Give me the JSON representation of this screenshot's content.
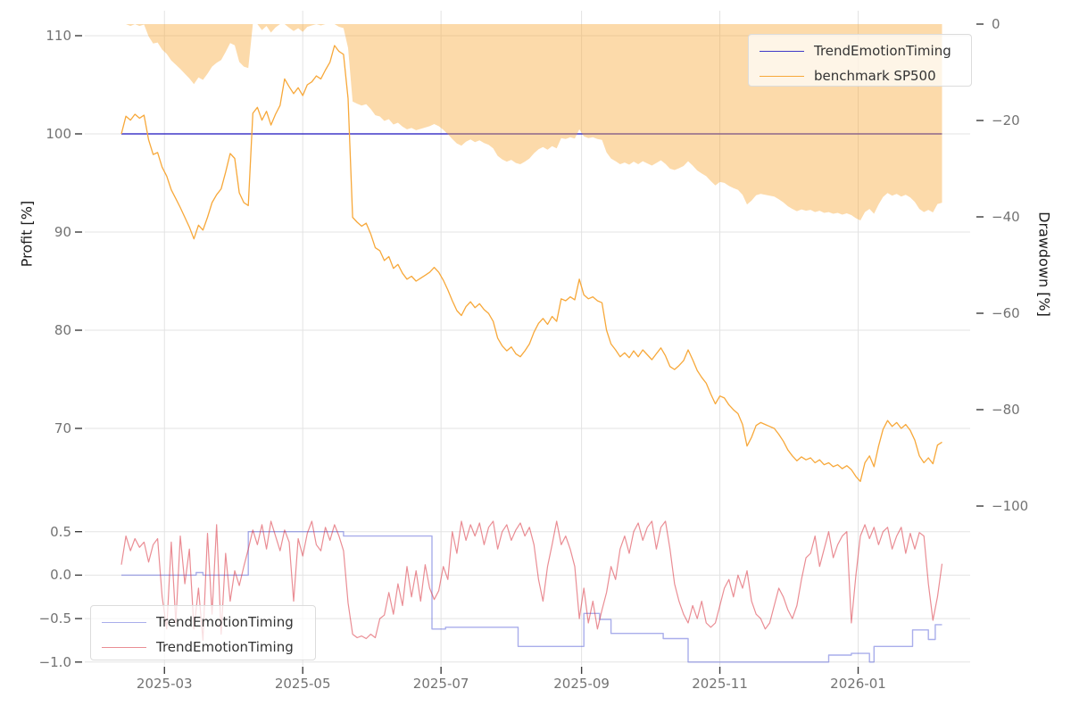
{
  "figure": {
    "type": "backtest-report-chart",
    "title": ""
  },
  "chart_data": {
    "type": "line",
    "x_axis": {
      "unit": "date",
      "start_date": "2025-02-10",
      "day_step": 2,
      "data_day_range": [
        0,
        362
      ],
      "ticks": [
        {
          "label": "2025-03",
          "day": 19
        },
        {
          "label": "2025-05",
          "day": 80
        },
        {
          "label": "2025-07",
          "day": 141
        },
        {
          "label": "2025-09",
          "day": 203
        },
        {
          "label": "2025-11",
          "day": 264
        },
        {
          "label": "2026-01",
          "day": 325
        }
      ]
    },
    "panels": [
      {
        "name": "profit-drawdown",
        "ylabel": "Profit [%]",
        "ylabel_right": "Drawdown [%]",
        "ylim_left": [
          61,
          112.5
        ],
        "yticks_left": {
          "values": [
            110,
            100,
            90,
            80,
            70
          ],
          "labels": [
            "110",
            "100",
            "90",
            "80",
            "70"
          ]
        },
        "ylim_right": [
          -102,
          3
        ],
        "yticks_right": {
          "values": [
            0,
            -20,
            -40,
            -60,
            -80,
            -100
          ],
          "labels": [
            "0",
            "−20",
            "−40",
            "−60",
            "−80",
            "−100"
          ]
        },
        "grid": true,
        "legend_position": "upper right",
        "series": [
          {
            "name": "TrendEmotionTiming",
            "type": "line",
            "axis": "left",
            "color": "#4038c8",
            "segments": [
              [
                0,
                362,
                100.0
              ]
            ]
          },
          {
            "name": "benchmark SP500",
            "type": "line",
            "axis": "left",
            "color": "#f7a83a",
            "values": [
              100.0,
              101.8,
              101.4,
              102.0,
              101.6,
              101.9,
              99.4,
              97.9,
              98.1,
              96.6,
              95.7,
              94.3,
              93.4,
              92.5,
              91.5,
              90.5,
              89.3,
              90.7,
              90.2,
              91.5,
              93.0,
              93.8,
              94.4,
              96.1,
              98.0,
              97.5,
              94.0,
              93.0,
              92.7,
              102.1,
              102.7,
              101.4,
              102.3,
              100.9,
              102.0,
              102.9,
              105.6,
              104.8,
              104.1,
              104.7,
              103.9,
              105.0,
              105.3,
              105.9,
              105.6,
              106.5,
              107.3,
              109.0,
              108.4,
              108.1,
              103.6,
              91.5,
              91.0,
              90.6,
              90.9,
              89.8,
              88.4,
              88.1,
              87.1,
              87.5,
              86.3,
              86.7,
              85.8,
              85.2,
              85.5,
              85.0,
              85.3,
              85.6,
              85.9,
              86.4,
              85.9,
              85.1,
              84.1,
              83.0,
              82.0,
              81.5,
              82.4,
              82.9,
              82.3,
              82.7,
              82.1,
              81.7,
              80.9,
              79.2,
              78.4,
              77.9,
              78.3,
              77.6,
              77.3,
              77.9,
              78.6,
              79.8,
              80.7,
              81.2,
              80.6,
              81.4,
              80.9,
              83.2,
              83.0,
              83.4,
              83.1,
              85.2,
              83.6,
              83.2,
              83.4,
              83.0,
              82.8,
              80.0,
              78.6,
              78.0,
              77.3,
              77.7,
              77.2,
              77.9,
              77.3,
              78.0,
              77.5,
              77.0,
              77.6,
              78.2,
              77.4,
              76.3,
              76.0,
              76.4,
              76.9,
              78.0,
              77.0,
              75.9,
              75.2,
              74.6,
              73.5,
              72.5,
              73.3,
              73.1,
              72.4,
              71.9,
              71.5,
              70.4,
              68.2,
              69.1,
              70.3,
              70.6,
              70.4,
              70.2,
              70.0,
              69.4,
              68.7,
              67.8,
              67.2,
              66.7,
              67.1,
              66.8,
              67.0,
              66.5,
              66.8,
              66.3,
              66.5,
              66.1,
              66.3,
              65.9,
              66.2,
              65.8,
              65.1,
              64.6,
              66.5,
              67.2,
              66.1,
              68.2,
              69.9,
              70.8,
              70.2,
              70.6,
              70.0,
              70.4,
              69.8,
              68.8,
              67.2,
              66.5,
              67.0,
              66.4,
              68.3,
              68.6
            ]
          },
          {
            "name": "benchmark SP500 drawdown",
            "type": "area",
            "axis": "right",
            "fill": "rgba(248,166,52,0.42)",
            "derived_from": "benchmark SP500",
            "formula": "(value / running_max - 1) * 100"
          }
        ]
      },
      {
        "name": "position-signal",
        "ylim": [
          -1.04,
          0.66
        ],
        "yticks": {
          "values": [
            0.5,
            0.0,
            -0.5,
            -1.0
          ],
          "labels": [
            "0.5",
            "0.0",
            "−0.5",
            "−1.0"
          ]
        },
        "grid": true,
        "legend_position": "lower left",
        "series": [
          {
            "name": "TrendEmotionTiming",
            "type": "step",
            "color": "rgba(84,94,216,0.5)",
            "segments": [
              [
                0,
                33,
                0.0
              ],
              [
                33,
                36,
                0.03
              ],
              [
                36,
                56,
                0.0
              ],
              [
                56,
                98,
                0.5
              ],
              [
                98,
                137,
                0.45
              ],
              [
                137,
                143,
                -0.62
              ],
              [
                143,
                175,
                -0.6
              ],
              [
                175,
                204,
                -0.82
              ],
              [
                204,
                211,
                -0.44
              ],
              [
                211,
                216,
                -0.51
              ],
              [
                216,
                239,
                -0.67
              ],
              [
                239,
                250,
                -0.73
              ],
              [
                250,
                312,
                -1.0
              ],
              [
                312,
                322,
                -0.92
              ],
              [
                322,
                330,
                -0.9
              ],
              [
                330,
                332,
                -1.0
              ],
              [
                332,
                349,
                -0.82
              ],
              [
                349,
                356,
                -0.63
              ],
              [
                356,
                359,
                -0.74
              ],
              [
                359,
                362,
                -0.57
              ]
            ]
          },
          {
            "name": "TrendEmotionTiming",
            "type": "line",
            "color": "rgba(217,48,60,0.55)",
            "values": [
              0.12,
              0.45,
              0.28,
              0.42,
              0.32,
              0.38,
              0.15,
              0.35,
              0.42,
              -0.25,
              -0.62,
              0.38,
              -0.55,
              0.45,
              -0.1,
              0.3,
              -0.62,
              -0.15,
              -0.75,
              0.48,
              -0.45,
              0.58,
              -0.68,
              0.25,
              -0.3,
              0.05,
              -0.12,
              0.1,
              0.3,
              0.52,
              0.35,
              0.58,
              0.3,
              0.62,
              0.45,
              0.28,
              0.52,
              0.38,
              -0.3,
              0.42,
              0.22,
              0.48,
              0.62,
              0.35,
              0.28,
              0.55,
              0.4,
              0.58,
              0.45,
              0.28,
              -0.32,
              -0.68,
              -0.72,
              -0.7,
              -0.73,
              -0.68,
              -0.72,
              -0.5,
              -0.46,
              -0.2,
              -0.45,
              -0.1,
              -0.35,
              0.1,
              -0.25,
              0.05,
              -0.3,
              0.12,
              -0.15,
              -0.28,
              -0.18,
              0.1,
              -0.05,
              0.5,
              0.25,
              0.62,
              0.4,
              0.58,
              0.45,
              0.6,
              0.35,
              0.55,
              0.62,
              0.3,
              0.5,
              0.58,
              0.4,
              0.52,
              0.6,
              0.45,
              0.55,
              0.35,
              -0.05,
              -0.3,
              0.1,
              0.35,
              0.62,
              0.35,
              0.45,
              0.3,
              0.1,
              -0.5,
              -0.15,
              -0.55,
              -0.3,
              -0.62,
              -0.4,
              -0.2,
              0.1,
              -0.05,
              0.3,
              0.45,
              0.25,
              0.5,
              0.6,
              0.4,
              0.55,
              0.62,
              0.3,
              0.55,
              0.62,
              0.3,
              -0.1,
              -0.3,
              -0.45,
              -0.55,
              -0.35,
              -0.5,
              -0.3,
              -0.55,
              -0.6,
              -0.55,
              -0.35,
              -0.15,
              -0.05,
              -0.25,
              0.0,
              -0.15,
              0.05,
              -0.3,
              -0.45,
              -0.5,
              -0.62,
              -0.55,
              -0.35,
              -0.15,
              -0.25,
              -0.4,
              -0.5,
              -0.35,
              -0.05,
              0.2,
              0.25,
              0.45,
              0.1,
              0.3,
              0.5,
              0.2,
              0.35,
              0.45,
              0.5,
              -0.55,
              0.0,
              0.45,
              0.58,
              0.42,
              0.55,
              0.35,
              0.5,
              0.55,
              0.3,
              0.45,
              0.55,
              0.25,
              0.48,
              0.3,
              0.49,
              0.45,
              -0.1,
              -0.52,
              -0.25,
              0.13
            ]
          }
        ]
      }
    ]
  }
}
